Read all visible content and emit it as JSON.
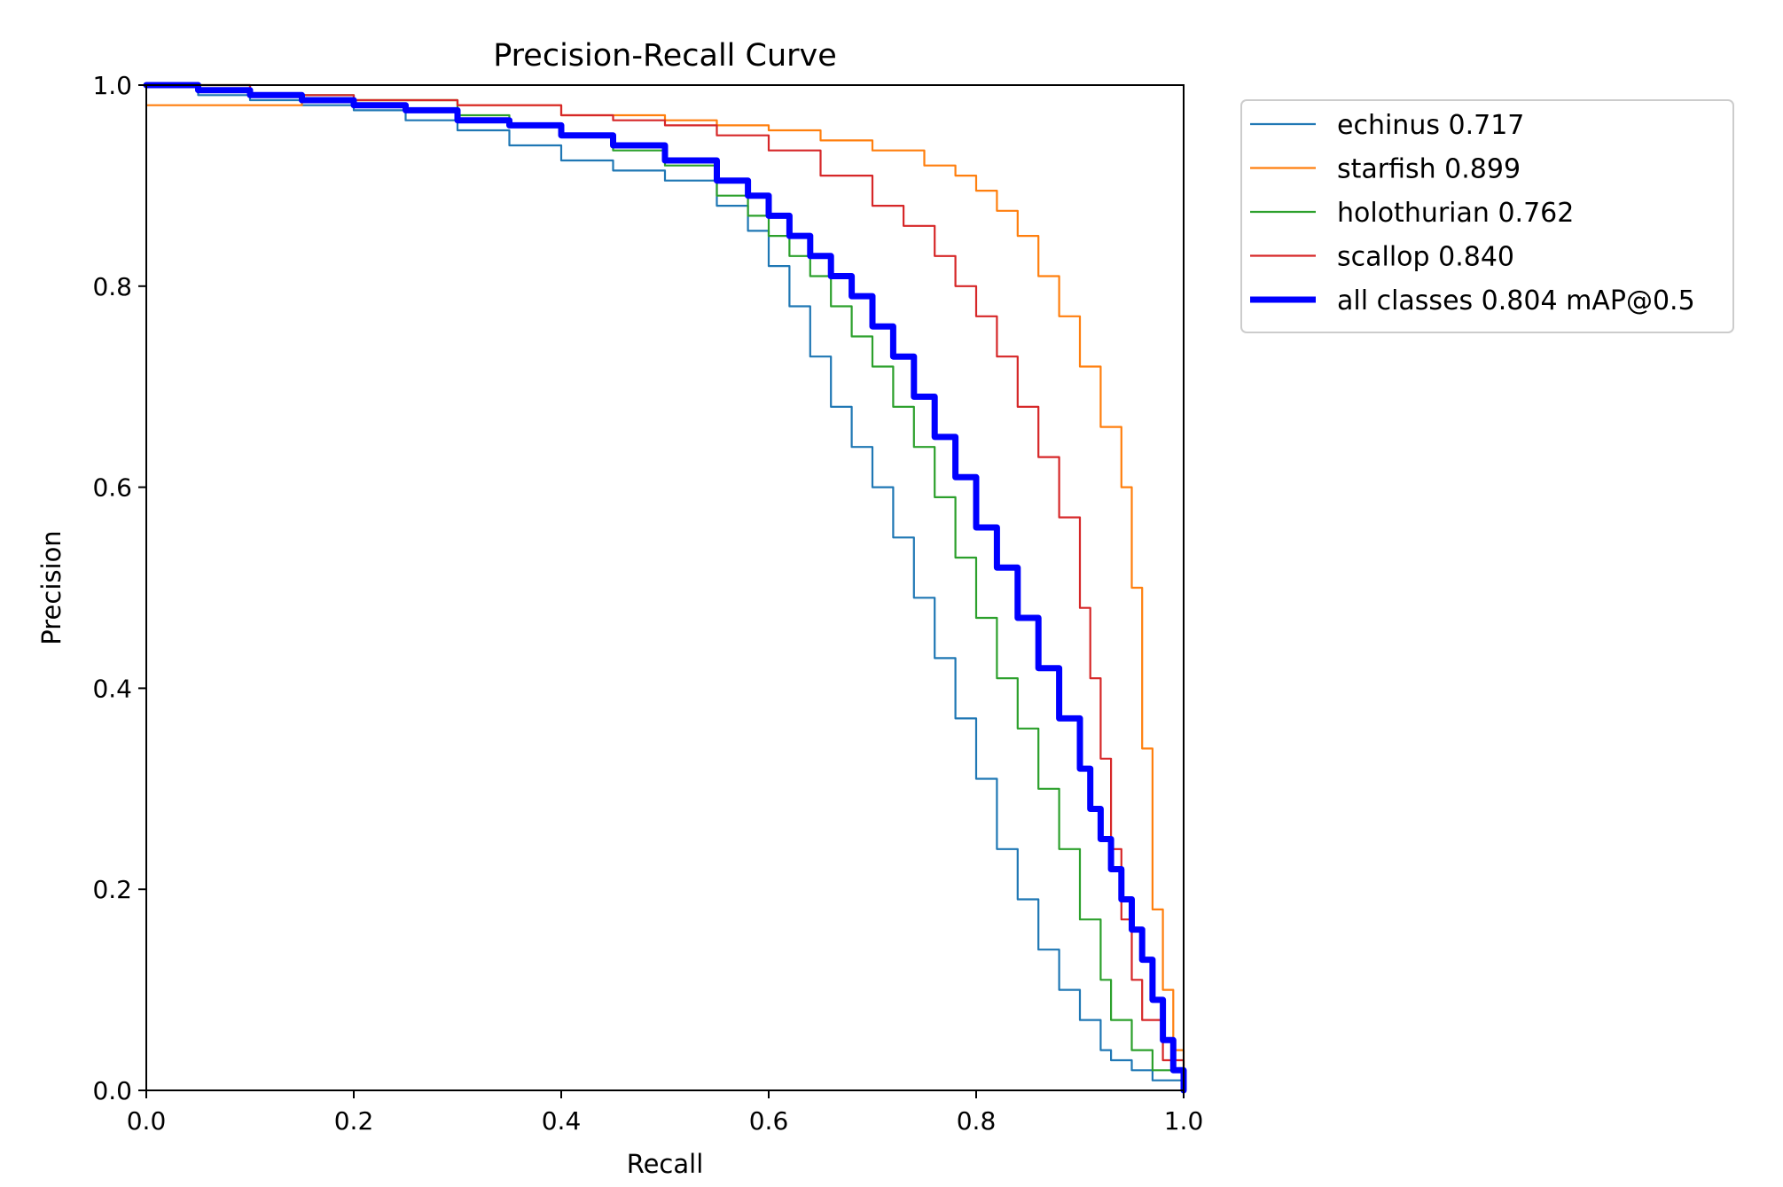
{
  "chart_data": {
    "type": "line",
    "title": "Precision-Recall Curve",
    "xlabel": "Recall",
    "ylabel": "Precision",
    "xlim": [
      0,
      1
    ],
    "ylim": [
      0,
      1
    ],
    "xticks": [
      "0.0",
      "0.2",
      "0.4",
      "0.6",
      "0.8",
      "1.0"
    ],
    "yticks": [
      "0.0",
      "0.2",
      "0.4",
      "0.6",
      "0.8",
      "1.0"
    ],
    "grid": false,
    "legend_position": "outside-top-right",
    "series": [
      {
        "name": "echinus 0.717",
        "color": "#1f77b4",
        "width": "thin",
        "x": [
          0,
          0.05,
          0.1,
          0.15,
          0.2,
          0.25,
          0.3,
          0.35,
          0.4,
          0.45,
          0.5,
          0.55,
          0.58,
          0.6,
          0.62,
          0.64,
          0.66,
          0.68,
          0.7,
          0.72,
          0.74,
          0.76,
          0.78,
          0.8,
          0.82,
          0.84,
          0.86,
          0.88,
          0.9,
          0.92,
          0.93,
          0.95,
          0.97,
          1.0
        ],
        "y": [
          1.0,
          0.99,
          0.985,
          0.98,
          0.975,
          0.965,
          0.955,
          0.94,
          0.925,
          0.915,
          0.905,
          0.88,
          0.855,
          0.82,
          0.78,
          0.73,
          0.68,
          0.64,
          0.6,
          0.55,
          0.49,
          0.43,
          0.37,
          0.31,
          0.24,
          0.19,
          0.14,
          0.1,
          0.07,
          0.04,
          0.03,
          0.02,
          0.01,
          0.0
        ]
      },
      {
        "name": "starfish 0.899",
        "color": "#ff7f0e",
        "width": "thin",
        "x": [
          0,
          0.1,
          0.15,
          0.2,
          0.3,
          0.4,
          0.5,
          0.55,
          0.6,
          0.65,
          0.7,
          0.75,
          0.78,
          0.8,
          0.82,
          0.84,
          0.86,
          0.88,
          0.9,
          0.92,
          0.94,
          0.95,
          0.96,
          0.97,
          0.98,
          0.99,
          1.0
        ],
        "y": [
          0.98,
          0.98,
          0.985,
          0.985,
          0.98,
          0.97,
          0.965,
          0.96,
          0.955,
          0.945,
          0.935,
          0.92,
          0.91,
          0.895,
          0.875,
          0.85,
          0.81,
          0.77,
          0.72,
          0.66,
          0.6,
          0.5,
          0.34,
          0.18,
          0.1,
          0.04,
          0.0
        ]
      },
      {
        "name": "holothurian 0.762",
        "color": "#2ca02c",
        "width": "thin",
        "x": [
          0,
          0.1,
          0.2,
          0.3,
          0.35,
          0.4,
          0.45,
          0.5,
          0.55,
          0.58,
          0.6,
          0.62,
          0.64,
          0.66,
          0.68,
          0.7,
          0.72,
          0.74,
          0.76,
          0.78,
          0.8,
          0.82,
          0.84,
          0.86,
          0.88,
          0.9,
          0.92,
          0.93,
          0.95,
          0.97,
          1.0
        ],
        "y": [
          1.0,
          0.99,
          0.985,
          0.97,
          0.96,
          0.95,
          0.935,
          0.92,
          0.89,
          0.87,
          0.85,
          0.83,
          0.81,
          0.78,
          0.75,
          0.72,
          0.68,
          0.64,
          0.59,
          0.53,
          0.47,
          0.41,
          0.36,
          0.3,
          0.24,
          0.17,
          0.11,
          0.07,
          0.04,
          0.02,
          0.0
        ]
      },
      {
        "name": "scallop 0.840",
        "color": "#d62728",
        "width": "thin",
        "x": [
          0,
          0.1,
          0.2,
          0.3,
          0.4,
          0.45,
          0.5,
          0.55,
          0.6,
          0.65,
          0.7,
          0.73,
          0.76,
          0.78,
          0.8,
          0.82,
          0.84,
          0.86,
          0.88,
          0.9,
          0.91,
          0.92,
          0.93,
          0.94,
          0.95,
          0.96,
          0.98,
          1.0
        ],
        "y": [
          1.0,
          0.99,
          0.985,
          0.98,
          0.97,
          0.965,
          0.96,
          0.95,
          0.935,
          0.91,
          0.88,
          0.86,
          0.83,
          0.8,
          0.77,
          0.73,
          0.68,
          0.63,
          0.57,
          0.48,
          0.41,
          0.33,
          0.24,
          0.17,
          0.11,
          0.07,
          0.03,
          0.0
        ]
      },
      {
        "name": "all classes 0.804 mAP@0.5",
        "color": "#0000ff",
        "width": "thick",
        "x": [
          0,
          0.05,
          0.1,
          0.15,
          0.2,
          0.25,
          0.3,
          0.35,
          0.4,
          0.45,
          0.5,
          0.55,
          0.58,
          0.6,
          0.62,
          0.64,
          0.66,
          0.68,
          0.7,
          0.72,
          0.74,
          0.76,
          0.78,
          0.8,
          0.82,
          0.84,
          0.86,
          0.88,
          0.9,
          0.91,
          0.92,
          0.93,
          0.94,
          0.95,
          0.96,
          0.97,
          0.98,
          0.99,
          1.0
        ],
        "y": [
          1.0,
          0.995,
          0.99,
          0.985,
          0.98,
          0.975,
          0.965,
          0.96,
          0.95,
          0.94,
          0.925,
          0.905,
          0.89,
          0.87,
          0.85,
          0.83,
          0.81,
          0.79,
          0.76,
          0.73,
          0.69,
          0.65,
          0.61,
          0.56,
          0.52,
          0.47,
          0.42,
          0.37,
          0.32,
          0.28,
          0.25,
          0.22,
          0.19,
          0.16,
          0.13,
          0.09,
          0.05,
          0.02,
          0.0
        ]
      }
    ]
  }
}
